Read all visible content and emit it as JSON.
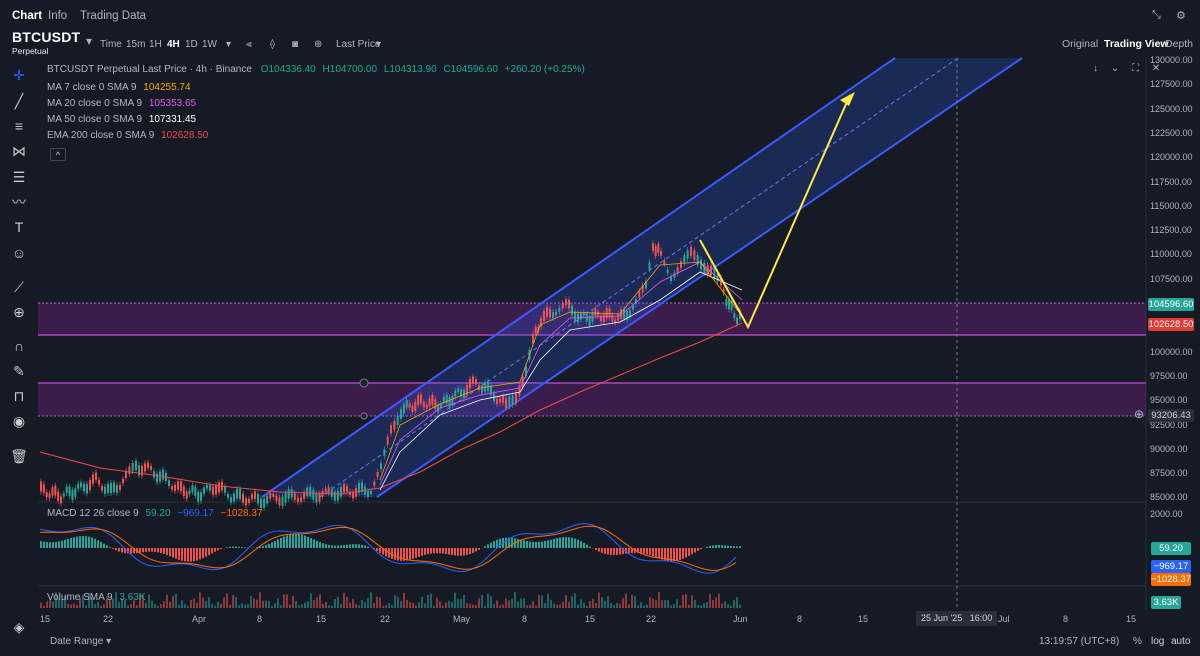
{
  "tabs": [
    {
      "label": "Chart",
      "active": true
    },
    {
      "label": "Info",
      "active": false
    },
    {
      "label": "Trading Data",
      "active": false
    }
  ],
  "symbol": {
    "name": "BTCUSDT",
    "sub": "Perpetual"
  },
  "toolbar": {
    "time_label": "Time",
    "timeframes": [
      "15m",
      "1H",
      "4H",
      "1D",
      "1W"
    ],
    "active_timeframe": "4H",
    "price_type": "Last Price",
    "views": [
      "Original",
      "Trading View",
      "Depth"
    ],
    "active_view": "Trading View"
  },
  "legend": {
    "title": "BTCUSDT Perpetual Last Price · 4h · Binance",
    "ohlc": {
      "o": "O104336.40",
      "h": "H104700.00",
      "l": "L104313.90",
      "c": "C104596.60",
      "chg": "+260.20 (+0.25%)"
    },
    "ma": [
      {
        "label": "MA 7 close 0 SMA 9",
        "value": "104255.74",
        "color": "#f7a600"
      },
      {
        "label": "MA 20 close 0 SMA 9",
        "value": "105353.65",
        "color": "#e05cf0"
      },
      {
        "label": "MA 50 close 0 SMA 9",
        "value": "107331.45",
        "color": "#ffffff"
      },
      {
        "label": "EMA 200 close 0 SMA 9",
        "value": "102628.50",
        "color": "#f04a4a"
      }
    ],
    "collapse_icon": "^"
  },
  "macd": {
    "label": "MACD 12 26 close 9",
    "v1": "59.20",
    "v2": "−969.17",
    "v3": "−1028.37"
  },
  "volume": {
    "label": "Volume SMA 9",
    "value": "3.63K"
  },
  "price_axis": [
    "130000.00",
    "127500.00",
    "125000.00",
    "122500.00",
    "120000.00",
    "117500.00",
    "115000.00",
    "112500.00",
    "110000.00",
    "107500.00",
    "105000.00",
    "102500.00",
    "100000.00",
    "97500.00",
    "95000.00",
    "92500.00",
    "90000.00",
    "87500.00",
    "85000.00"
  ],
  "price_badges": {
    "last": "104596.60",
    "ema": "102628.50",
    "cross": "93206.43"
  },
  "macd_axis": {
    "top": "2000.00",
    "v1": "59.20",
    "v2": "−969.17",
    "v3": "−1028.37"
  },
  "volume_axis": "3.63K",
  "date_axis": [
    "15",
    "22",
    "Apr",
    "8",
    "15",
    "22",
    "May",
    "8",
    "15",
    "22",
    "Jun",
    "8",
    "15",
    "Jul",
    "8",
    "15"
  ],
  "crosshair_date": "25 Jun '25   16:00",
  "bottom": {
    "date_range": "Date Range",
    "clock": "13:19:57 (UTC+8)",
    "pct": "%",
    "log": "log",
    "auto": "auto"
  },
  "colors": {
    "bg": "#161a25",
    "channel": "#3d5afe",
    "zone": "#9c27b0",
    "arrow": "#ffeb3b",
    "up": "#26a69a",
    "down": "#ef5350"
  }
}
